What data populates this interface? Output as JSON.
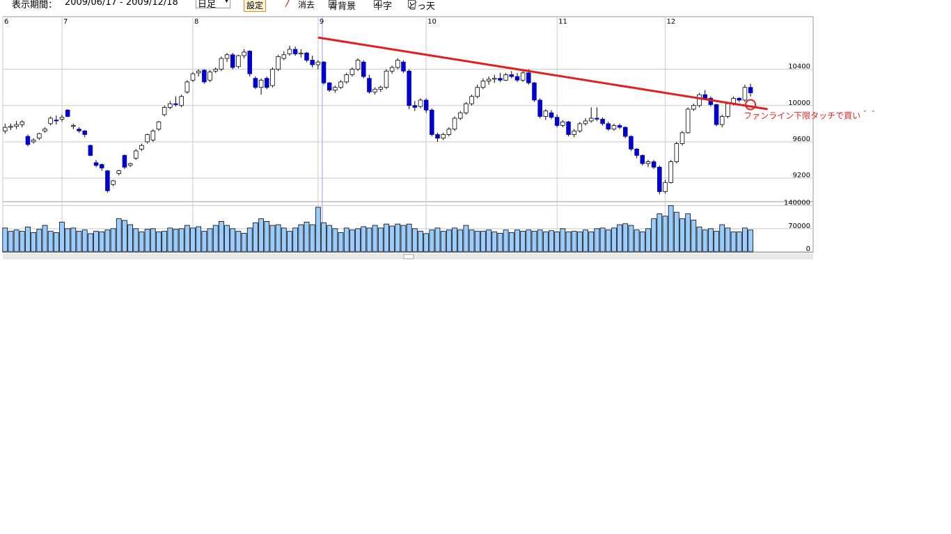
{
  "toolbar": {
    "period_label": "表示期間：",
    "period": "2009/06/17 - 2009/12/18",
    "interval": "日足",
    "apply": "設定",
    "clear": "消去",
    "checkboxes": [
      {
        "label": "青背景",
        "checked": false
      },
      {
        "label": "十字",
        "checked": true
      },
      {
        "label": "どっ天",
        "checked": false
      }
    ]
  },
  "chart_data": {
    "type": "candlestick",
    "grid": true,
    "up_color": "#ffffff",
    "down_color": "#0000cc",
    "xlim": [
      -0.4,
      142
    ],
    "xticks": [
      {
        "value": -0.4,
        "label": "6"
      },
      {
        "value": 10,
        "label": "7"
      },
      {
        "value": 33,
        "label": "8"
      },
      {
        "value": 55,
        "label": "9"
      },
      {
        "value": 74,
        "label": "10"
      },
      {
        "value": 97,
        "label": "11"
      },
      {
        "value": 116,
        "label": "12"
      }
    ],
    "ylim": [
      8940,
      10980
    ],
    "yticks": [
      9200,
      9600,
      10000,
      10400
    ],
    "ohlc": [
      [
        9720,
        9800,
        9690,
        9760
      ],
      [
        9760,
        9800,
        9730,
        9770
      ],
      [
        9770,
        9830,
        9740,
        9790
      ],
      [
        9790,
        9840,
        9760,
        9820
      ],
      [
        9660,
        9680,
        9550,
        9570
      ],
      [
        9600,
        9640,
        9580,
        9620
      ],
      [
        9640,
        9700,
        9620,
        9690
      ],
      [
        9720,
        9760,
        9700,
        9740
      ],
      [
        9800,
        9880,
        9780,
        9860
      ],
      [
        9840,
        9890,
        9790,
        9830
      ],
      [
        9850,
        9900,
        9820,
        9870
      ],
      [
        9950,
        9960,
        9870,
        9880
      ],
      [
        9770,
        9800,
        9740,
        9780
      ],
      [
        9740,
        9760,
        9700,
        9720
      ],
      [
        9720,
        9730,
        9650,
        9680
      ],
      [
        9560,
        9570,
        9440,
        9450
      ],
      [
        9370,
        9400,
        9320,
        9340
      ],
      [
        9350,
        9360,
        9280,
        9310
      ],
      [
        9280,
        9290,
        9040,
        9060
      ],
      [
        9130,
        9180,
        9110,
        9170
      ],
      [
        9250,
        9290,
        9230,
        9280
      ],
      [
        9450,
        9460,
        9300,
        9320
      ],
      [
        9340,
        9370,
        9320,
        9360
      ],
      [
        9420,
        9520,
        9400,
        9500
      ],
      [
        9520,
        9580,
        9500,
        9560
      ],
      [
        9600,
        9690,
        9580,
        9680
      ],
      [
        9620,
        9740,
        9600,
        9720
      ],
      [
        9740,
        9830,
        9720,
        9820
      ],
      [
        9900,
        10000,
        9880,
        9980
      ],
      [
        9980,
        10050,
        9960,
        10020
      ],
      [
        10020,
        10100,
        9990,
        10010
      ],
      [
        10000,
        10120,
        9980,
        10100
      ],
      [
        10150,
        10280,
        10130,
        10260
      ],
      [
        10280,
        10370,
        10260,
        10350
      ],
      [
        10360,
        10400,
        10320,
        10380
      ],
      [
        10390,
        10400,
        10240,
        10260
      ],
      [
        10280,
        10390,
        10260,
        10370
      ],
      [
        10380,
        10420,
        10360,
        10400
      ],
      [
        10400,
        10540,
        10380,
        10520
      ],
      [
        10520,
        10580,
        10480,
        10560
      ],
      [
        10560,
        10580,
        10400,
        10420
      ],
      [
        10430,
        10560,
        10410,
        10550
      ],
      [
        10550,
        10620,
        10520,
        10590
      ],
      [
        10600,
        10610,
        10320,
        10350
      ],
      [
        10300,
        10320,
        10180,
        10200
      ],
      [
        10200,
        10300,
        10120,
        10280
      ],
      [
        10300,
        10320,
        10180,
        10200
      ],
      [
        10220,
        10420,
        10200,
        10400
      ],
      [
        10400,
        10560,
        10380,
        10540
      ],
      [
        10520,
        10600,
        10500,
        10560
      ],
      [
        10570,
        10660,
        10550,
        10620
      ],
      [
        10620,
        10650,
        10550,
        10570
      ],
      [
        10570,
        10620,
        10530,
        10580
      ],
      [
        10580,
        10590,
        10480,
        10500
      ],
      [
        10500,
        10550,
        10420,
        10450
      ],
      [
        10450,
        10500,
        10400,
        10480
      ],
      [
        10480,
        10490,
        10230,
        10250
      ],
      [
        10250,
        10260,
        10150,
        10170
      ],
      [
        10170,
        10220,
        10140,
        10200
      ],
      [
        10200,
        10280,
        10180,
        10260
      ],
      [
        10260,
        10360,
        10240,
        10340
      ],
      [
        10340,
        10420,
        10320,
        10400
      ],
      [
        10400,
        10520,
        10380,
        10500
      ],
      [
        10480,
        10500,
        10300,
        10320
      ],
      [
        10300,
        10340,
        10130,
        10150
      ],
      [
        10150,
        10200,
        10120,
        10180
      ],
      [
        10180,
        10220,
        10150,
        10200
      ],
      [
        10200,
        10400,
        10180,
        10380
      ],
      [
        10380,
        10440,
        10350,
        10420
      ],
      [
        10420,
        10520,
        10400,
        10500
      ],
      [
        10480,
        10500,
        10360,
        10380
      ],
      [
        10380,
        10400,
        9960,
        10000
      ],
      [
        10000,
        10050,
        9940,
        9980
      ],
      [
        9990,
        10080,
        9970,
        10060
      ],
      [
        10060,
        10080,
        9920,
        9950
      ],
      [
        9950,
        9970,
        9660,
        9680
      ],
      [
        9680,
        9700,
        9600,
        9640
      ],
      [
        9640,
        9700,
        9620,
        9680
      ],
      [
        9680,
        9760,
        9660,
        9740
      ],
      [
        9740,
        9880,
        9720,
        9860
      ],
      [
        9860,
        9940,
        9840,
        9920
      ],
      [
        9920,
        10040,
        9900,
        10020
      ],
      [
        10020,
        10120,
        10000,
        10100
      ],
      [
        10100,
        10230,
        10080,
        10200
      ],
      [
        10200,
        10300,
        10180,
        10270
      ],
      [
        10270,
        10320,
        10230,
        10290
      ],
      [
        10290,
        10340,
        10250,
        10300
      ],
      [
        10300,
        10360,
        10260,
        10280
      ],
      [
        10280,
        10360,
        10270,
        10340
      ],
      [
        10340,
        10380,
        10300,
        10320
      ],
      [
        10320,
        10360,
        10260,
        10280
      ],
      [
        10280,
        10380,
        10260,
        10360
      ],
      [
        10360,
        10400,
        10230,
        10250
      ],
      [
        10250,
        10260,
        10040,
        10060
      ],
      [
        10060,
        10080,
        9860,
        9880
      ],
      [
        9880,
        9960,
        9840,
        9940
      ],
      [
        9920,
        9950,
        9850,
        9870
      ],
      [
        9870,
        9900,
        9760,
        9780
      ],
      [
        9780,
        9840,
        9760,
        9820
      ],
      [
        9820,
        9830,
        9660,
        9680
      ],
      [
        9680,
        9740,
        9650,
        9720
      ],
      [
        9720,
        9820,
        9700,
        9800
      ],
      [
        9800,
        9860,
        9780,
        9830
      ],
      [
        9830,
        9980,
        9810,
        9860
      ],
      [
        9860,
        9980,
        9830,
        9850
      ],
      [
        9850,
        9870,
        9780,
        9800
      ],
      [
        9800,
        9820,
        9720,
        9740
      ],
      [
        9740,
        9800,
        9720,
        9780
      ],
      [
        9780,
        9800,
        9740,
        9760
      ],
      [
        9760,
        9770,
        9640,
        9660
      ],
      [
        9660,
        9670,
        9500,
        9520
      ],
      [
        9520,
        9530,
        9420,
        9450
      ],
      [
        9450,
        9460,
        9340,
        9360
      ],
      [
        9360,
        9400,
        9320,
        9380
      ],
      [
        9380,
        9400,
        9300,
        9320
      ],
      [
        9320,
        9340,
        9020,
        9050
      ],
      [
        9050,
        9180,
        9030,
        9150
      ],
      [
        9150,
        9400,
        9140,
        9380
      ],
      [
        9380,
        9600,
        9360,
        9580
      ],
      [
        9580,
        9720,
        9560,
        9700
      ],
      [
        9700,
        9980,
        9690,
        9960
      ],
      [
        9960,
        10020,
        9940,
        10000
      ],
      [
        10000,
        10140,
        9980,
        10120
      ],
      [
        10120,
        10170,
        10060,
        10080
      ],
      [
        10080,
        10100,
        9990,
        10010
      ],
      [
        10010,
        10020,
        9770,
        9790
      ],
      [
        9790,
        9900,
        9760,
        9880
      ],
      [
        9880,
        10040,
        9860,
        10020
      ],
      [
        10020,
        10100,
        10000,
        10080
      ],
      [
        10080,
        10090,
        10040,
        10060
      ],
      [
        10060,
        10230,
        10040,
        10200
      ],
      [
        10200,
        10240,
        10100,
        10140
      ]
    ],
    "volume": {
      "color": "#99ccff",
      "ylim": [
        0,
        152000
      ],
      "yticks": [
        0,
        70000,
        140000
      ],
      "values": [
        72000,
        62000,
        66000,
        62000,
        75000,
        58000,
        68000,
        80000,
        62000,
        58000,
        90000,
        70000,
        72000,
        62000,
        66000,
        55000,
        62000,
        60000,
        66000,
        70000,
        100000,
        95000,
        82000,
        70000,
        60000,
        68000,
        70000,
        60000,
        62000,
        72000,
        68000,
        70000,
        80000,
        72000,
        76000,
        62000,
        70000,
        80000,
        92000,
        80000,
        70000,
        62000,
        56000,
        72000,
        88000,
        100000,
        92000,
        80000,
        82000,
        72000,
        62000,
        72000,
        82000,
        90000,
        82000,
        135000,
        88000,
        80000,
        70000,
        58000,
        72000,
        66000,
        70000,
        76000,
        72000,
        80000,
        72000,
        84000,
        78000,
        84000,
        80000,
        84000,
        70000,
        62000,
        55000,
        66000,
        72000,
        62000,
        66000,
        72000,
        66000,
        80000,
        66000,
        62000,
        62000,
        66000,
        60000,
        56000,
        66000,
        58000,
        66000,
        62000,
        66000,
        62000,
        66000,
        60000,
        64000,
        60000,
        70000,
        60000,
        62000,
        60000,
        66000,
        60000,
        70000,
        72000,
        66000,
        72000,
        82000,
        85000,
        80000,
        66000,
        60000,
        70000,
        100000,
        115000,
        108000,
        140000,
        120000,
        100000,
        115000,
        96000,
        75000,
        66000,
        70000,
        62000,
        82000,
        72000,
        60000,
        60000,
        72000,
        66000
      ]
    },
    "fan_line": {
      "x": [
        55,
        134
      ],
      "y": [
        10750,
        9960
      ],
      "color": "#e02020"
    },
    "annotation": {
      "text": "ファンライン下限タッチで買い＾＾",
      "x": 131,
      "y": 10010,
      "color": "#e02020"
    }
  }
}
